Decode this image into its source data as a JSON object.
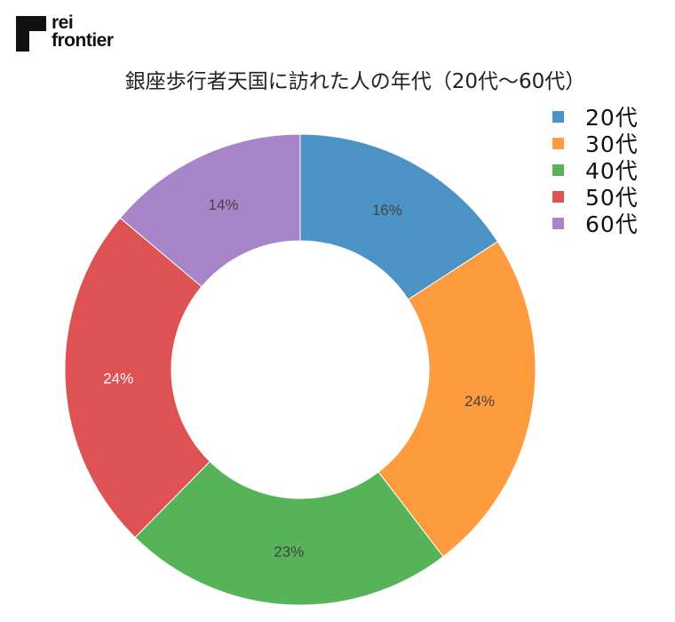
{
  "logo": {
    "line1": "rei",
    "line2": "frontier",
    "icon": "brand-mark-icon"
  },
  "chart_data": {
    "type": "pie",
    "title": "銀座歩行者天国に訪れた人の年代（20代〜60代）",
    "categories": [
      "20代",
      "30代",
      "40代",
      "50代",
      "60代"
    ],
    "values": [
      16,
      24,
      23,
      24,
      14
    ],
    "labels": [
      "16%",
      "24%",
      "23%",
      "24%",
      "14%"
    ],
    "colors": [
      "#4b93c4",
      "#fd9b3e",
      "#57b357",
      "#df5254",
      "#a884c9"
    ],
    "label_colors": [
      "#444444",
      "#444444",
      "#444444",
      "#ffffff",
      "#444444"
    ],
    "donut": true,
    "legend_position": "top-right"
  }
}
